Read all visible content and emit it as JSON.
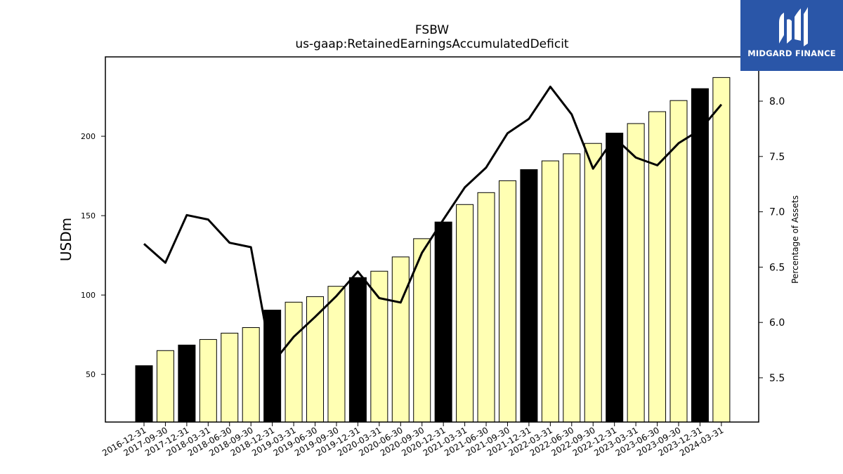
{
  "chart_data": {
    "type": "bar",
    "title": "FSBW",
    "subtitle": "us-gaap:RetainedEarningsAccumulatedDeficit",
    "ylabel": "USDm",
    "ylabel_right": "Percentage of Assets",
    "ylim": [
      20,
      250
    ],
    "ylim_right": [
      5.1,
      8.4
    ],
    "yticks": [
      "50",
      "100",
      "150",
      "200"
    ],
    "yticks_right": [
      "5.5",
      "6.0",
      "6.5",
      "7.0",
      "7.5",
      "8.0"
    ],
    "categories": [
      "2016-12-31",
      "2017-09-30",
      "2017-12-31",
      "2018-03-31",
      "2018-06-30",
      "2018-09-30",
      "2018-12-31",
      "2019-03-31",
      "2019-06-30",
      "2019-09-30",
      "2019-12-31",
      "2020-03-31",
      "2020-06-30",
      "2020-09-30",
      "2020-12-31",
      "2021-03-31",
      "2021-06-30",
      "2021-09-30",
      "2021-12-31",
      "2022-03-31",
      "2022-06-30",
      "2022-09-30",
      "2022-12-31",
      "2023-03-31",
      "2023-06-30",
      "2023-09-30",
      "2023-12-31",
      "2024-03-31"
    ],
    "series": [
      {
        "kind": "bar",
        "values": [
          55.5,
          65,
          68.5,
          72,
          76,
          79.5,
          90.5,
          95.5,
          99,
          105.5,
          111,
          115,
          124,
          135.5,
          146,
          157,
          164.5,
          172,
          179,
          184.5,
          189,
          195.5,
          202,
          208,
          215.5,
          222.5,
          230,
          237
        ]
      },
      {
        "kind": "line",
        "axis": "right",
        "values": [
          6.71,
          6.54,
          6.97,
          6.93,
          6.72,
          6.68,
          5.63,
          5.87,
          6.05,
          6.24,
          6.46,
          6.22,
          6.18,
          6.63,
          6.93,
          7.22,
          7.4,
          7.71,
          7.84,
          8.13,
          7.88,
          7.39,
          7.67,
          7.49,
          7.42,
          7.62,
          7.74,
          7.97
        ]
      }
    ],
    "colors": {
      "highlight": "#000000",
      "normal": "#ffffb3",
      "edge": "#000000",
      "line": "#000000"
    },
    "grid": false
  },
  "logo": {
    "text": "MIDGARD FINANCE",
    "color": "#2a56a8"
  }
}
